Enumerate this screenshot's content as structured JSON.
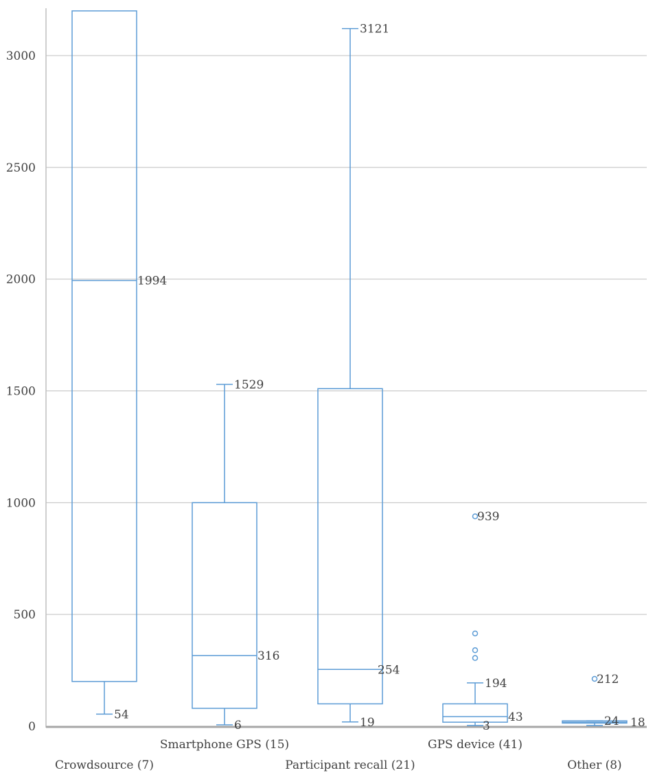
{
  "chart_data": {
    "type": "box",
    "title": "",
    "xlabel": "",
    "ylabel": "",
    "ylim": [
      0,
      3200
    ],
    "yticks": [
      0,
      500,
      1000,
      1500,
      2000,
      2500,
      3000
    ],
    "grid": true,
    "color": "#5b9bd5",
    "categories": [
      "Crowdsource (7)",
      "Smartphone GPS (15)",
      "Participant recall (21)",
      "GPS device (41)",
      "Other (8)"
    ],
    "boxes": [
      {
        "category": "Crowdsource (7)",
        "q1": 200,
        "median": 1994,
        "q3": 3200,
        "whisker_low": 54,
        "whisker_high": 3200,
        "outliers": [],
        "labels": [
          "1994",
          "54"
        ]
      },
      {
        "category": "Smartphone GPS (15)",
        "q1": 80,
        "median": 316,
        "q3": 1000,
        "whisker_low": 6,
        "whisker_high": 1529,
        "outliers": [],
        "labels": [
          "1529",
          "316",
          "6"
        ]
      },
      {
        "category": "Participant recall (21)",
        "q1": 100,
        "median": 254,
        "q3": 1510,
        "whisker_low": 19,
        "whisker_high": 3121,
        "outliers": [],
        "labels": [
          "3121",
          "254",
          "19"
        ]
      },
      {
        "category": "GPS device (41)",
        "q1": 18,
        "median": 43,
        "q3": 100,
        "whisker_low": 3,
        "whisker_high": 194,
        "outliers": [
          939,
          415,
          340,
          305
        ],
        "labels": [
          "939",
          "194",
          "43",
          "3"
        ]
      },
      {
        "category": "Other (8)",
        "q1": 14,
        "median": 18,
        "q3": 24,
        "whisker_low": 3,
        "whisker_high": 24,
        "outliers": [
          212
        ],
        "labels": [
          "212",
          "24",
          "18"
        ]
      }
    ]
  }
}
